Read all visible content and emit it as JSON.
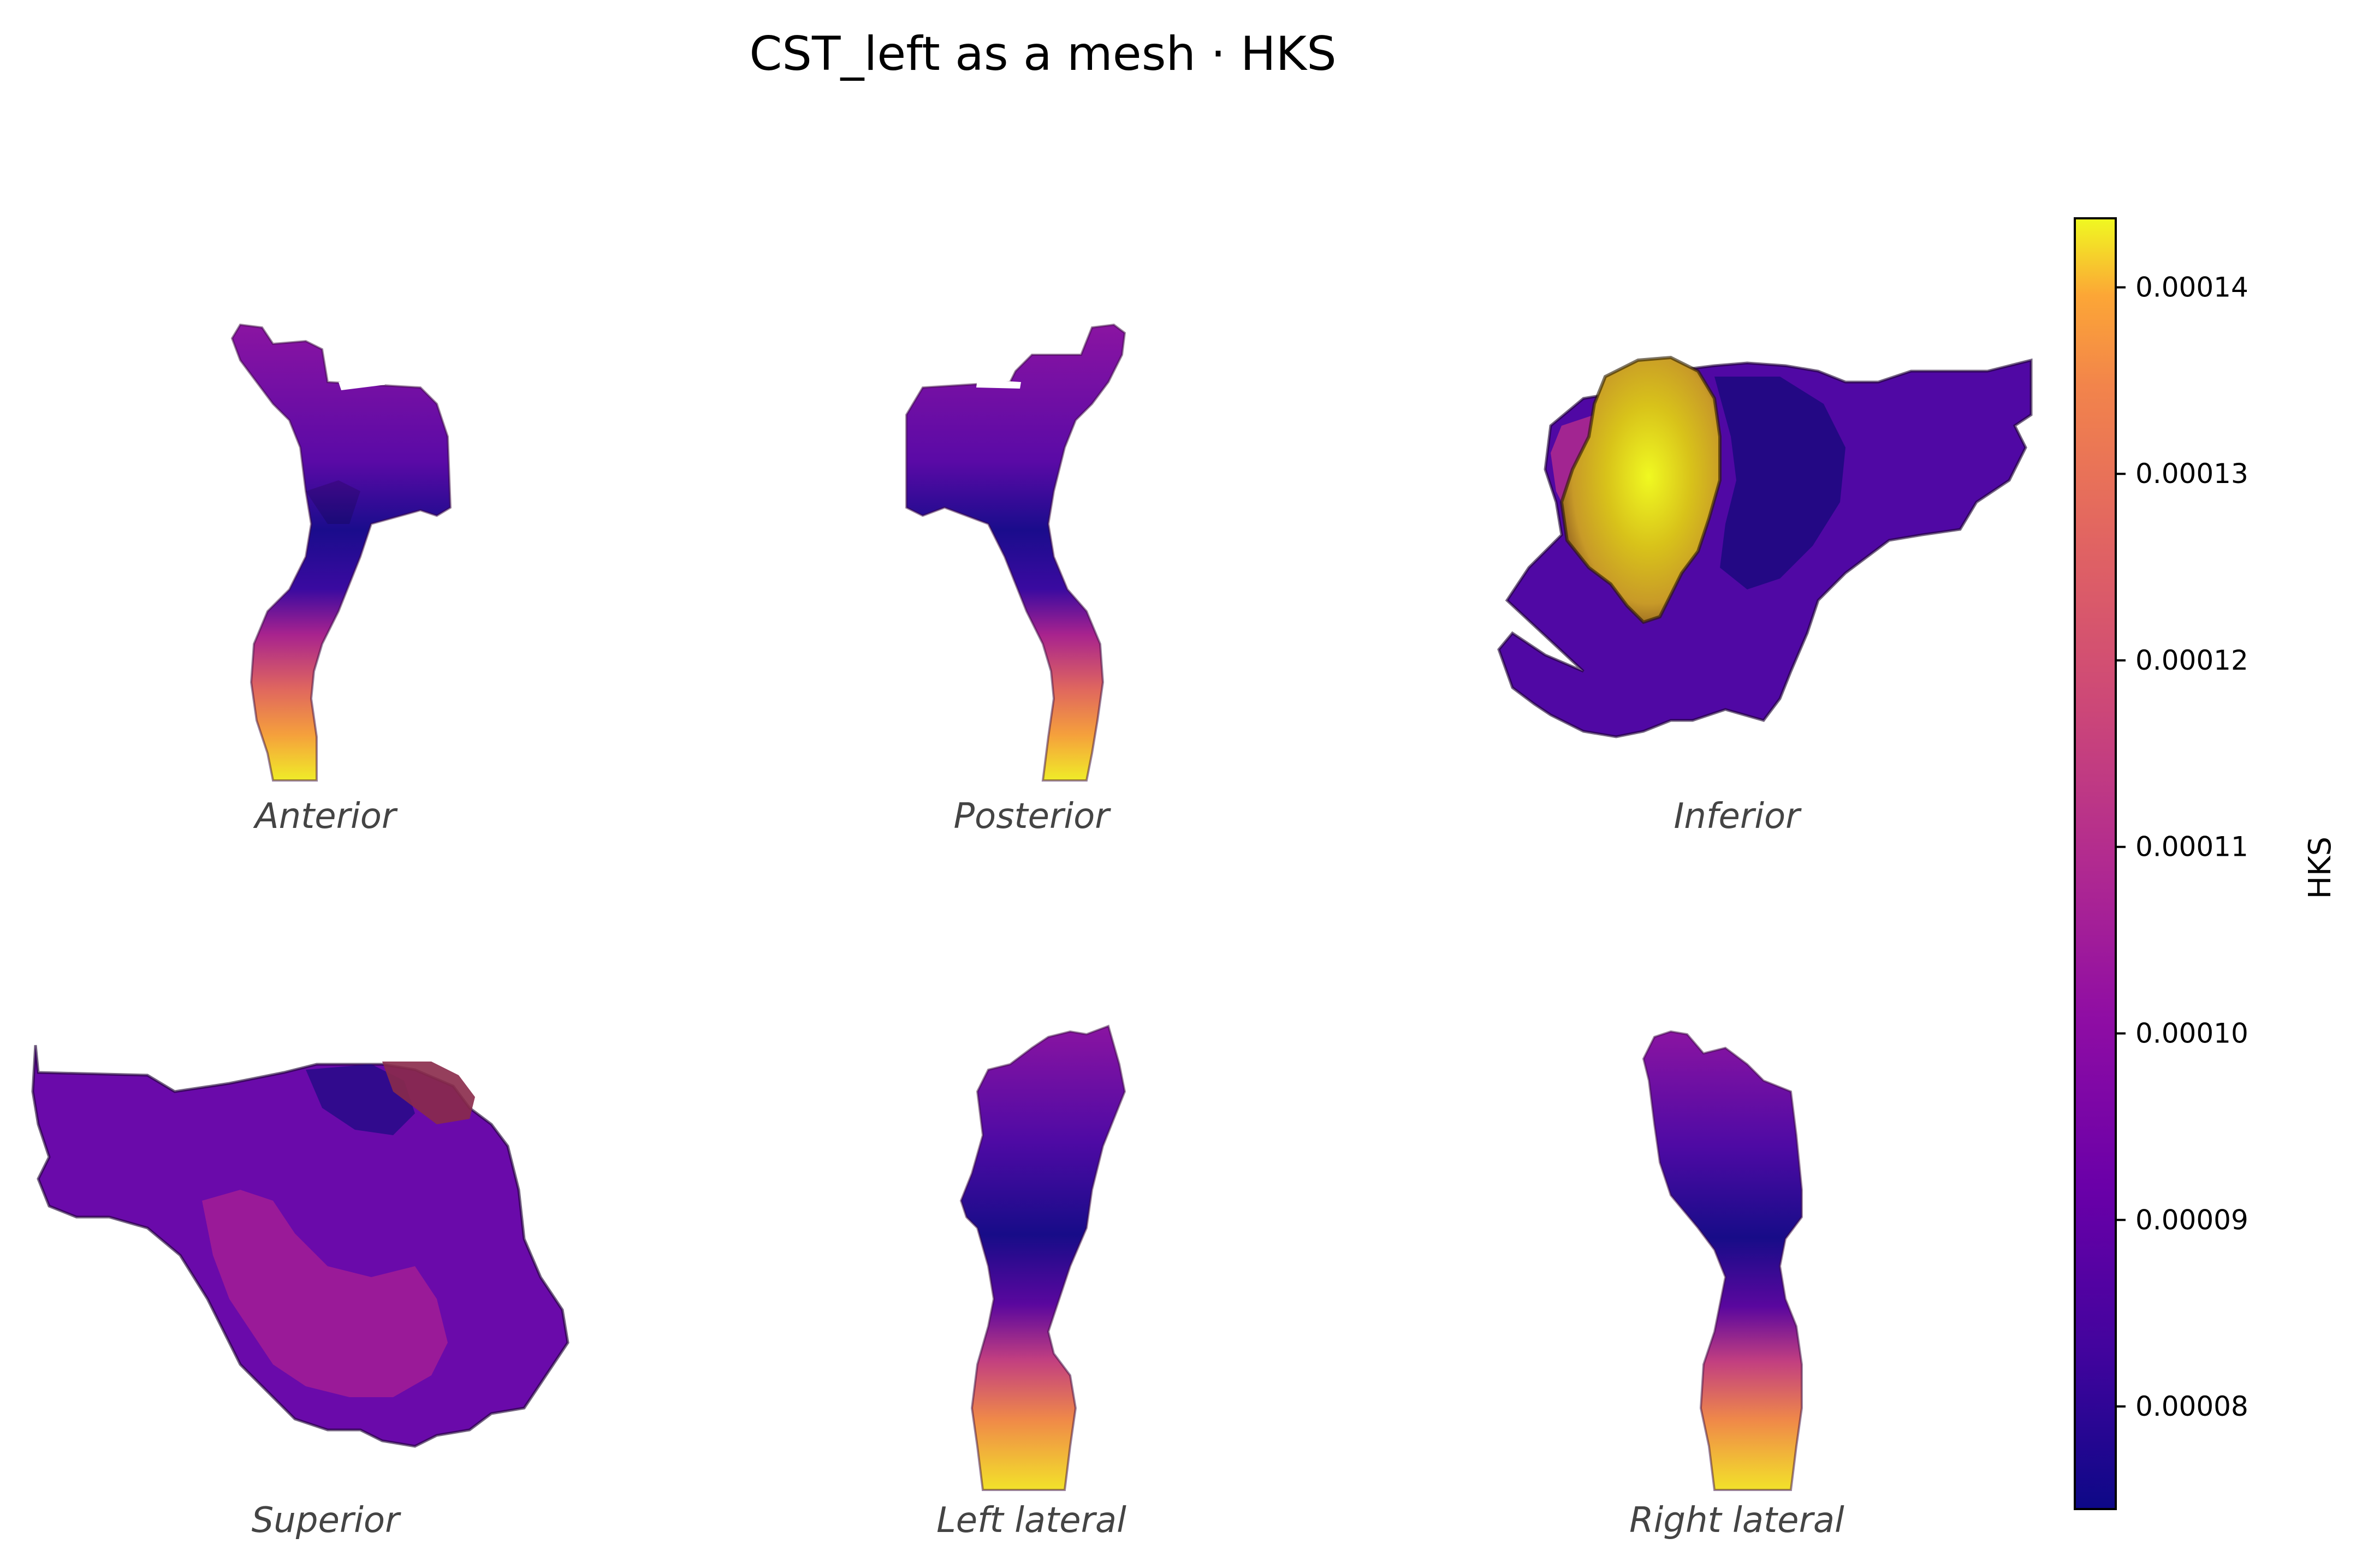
{
  "title": "CST_left as a mesh · HKS",
  "views": [
    {
      "id": "anterior",
      "label": "Anterior"
    },
    {
      "id": "posterior",
      "label": "Posterior"
    },
    {
      "id": "inferior",
      "label": "Inferior"
    },
    {
      "id": "superior",
      "label": "Superior"
    },
    {
      "id": "left-lateral",
      "label": "Left lateral"
    },
    {
      "id": "right-lateral",
      "label": "Right lateral"
    }
  ],
  "colorbar": {
    "label": "HKS",
    "colormap": "plasma",
    "min": 7.45e-05,
    "max": 0.0001437,
    "ticks": [
      "0.00008",
      "0.00009",
      "0.00010",
      "0.00011",
      "0.00012",
      "0.00013",
      "0.00014"
    ]
  },
  "colors": {
    "plasma_low": "#0d0887",
    "plasma_mid": "#cc4778",
    "plasma_high": "#f0f921"
  }
}
